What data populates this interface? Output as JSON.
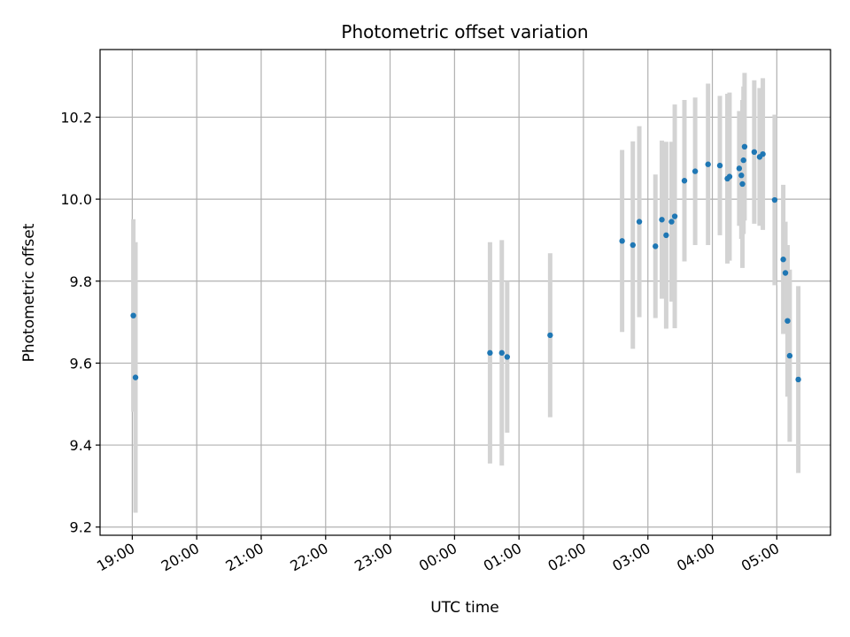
{
  "chart_data": {
    "type": "scatter",
    "title": "Photometric offset variation",
    "xlabel": "UTC time",
    "ylabel": "Photometric offset",
    "x_axis_type": "time",
    "xlim": [
      "18:30",
      "05:50"
    ],
    "ylim": [
      9.18,
      10.365
    ],
    "grid": true,
    "x_ticks": [
      "19:00",
      "20:00",
      "21:00",
      "22:00",
      "23:00",
      "00:00",
      "01:00",
      "02:00",
      "03:00",
      "04:00",
      "05:00"
    ],
    "y_ticks": [
      9.2,
      9.4,
      9.6,
      9.8,
      10.0,
      10.2
    ],
    "y_tick_labels": [
      "9.2",
      "9.4",
      "9.6",
      "9.8",
      "10.0",
      "10.2"
    ],
    "colors": {
      "point": "#1f77b4",
      "error_bar": "#d3d3d3",
      "grid": "#b0b0b0"
    },
    "series": [
      {
        "points": [
          {
            "x": "19:01",
            "y": 9.716,
            "err": 0.235
          },
          {
            "x": "19:03",
            "y": 9.565,
            "err": 0.33
          },
          {
            "x": "00:33",
            "y": 9.625,
            "err": 0.27
          },
          {
            "x": "00:44",
            "y": 9.625,
            "err": 0.275
          },
          {
            "x": "00:49",
            "y": 9.615,
            "err": 0.185
          },
          {
            "x": "01:29",
            "y": 9.668,
            "err": 0.2
          },
          {
            "x": "02:36",
            "y": 9.898,
            "err": 0.222
          },
          {
            "x": "02:46",
            "y": 9.888,
            "err": 0.253
          },
          {
            "x": "02:52",
            "y": 9.945,
            "err": 0.233
          },
          {
            "x": "03:07",
            "y": 9.885,
            "err": 0.175
          },
          {
            "x": "03:13",
            "y": 9.95,
            "err": 0.193
          },
          {
            "x": "03:17",
            "y": 9.912,
            "err": 0.228
          },
          {
            "x": "03:22",
            "y": 9.945,
            "err": 0.195
          },
          {
            "x": "03:25",
            "y": 9.958,
            "err": 0.273
          },
          {
            "x": "03:34",
            "y": 10.045,
            "err": 0.197
          },
          {
            "x": "03:44",
            "y": 10.068,
            "err": 0.18
          },
          {
            "x": "03:56",
            "y": 10.085,
            "err": 0.197
          },
          {
            "x": "04:07",
            "y": 10.082,
            "err": 0.17
          },
          {
            "x": "04:14",
            "y": 10.05,
            "err": 0.207
          },
          {
            "x": "04:16",
            "y": 10.055,
            "err": 0.205
          },
          {
            "x": "04:25",
            "y": 10.075,
            "err": 0.14
          },
          {
            "x": "04:27",
            "y": 10.058,
            "err": 0.155
          },
          {
            "x": "04:28",
            "y": 10.037,
            "err": 0.205
          },
          {
            "x": "04:29",
            "y": 10.095,
            "err": 0.18
          },
          {
            "x": "04:30",
            "y": 10.128,
            "err": 0.18
          },
          {
            "x": "04:39",
            "y": 10.115,
            "err": 0.175
          },
          {
            "x": "04:44",
            "y": 10.103,
            "err": 0.168
          },
          {
            "x": "04:47",
            "y": 10.11,
            "err": 0.185
          },
          {
            "x": "04:58",
            "y": 9.998,
            "err": 0.208
          },
          {
            "x": "05:06",
            "y": 9.853,
            "err": 0.182
          },
          {
            "x": "05:08",
            "y": 9.82,
            "err": 0.125
          },
          {
            "x": "05:10",
            "y": 9.703,
            "err": 0.185
          },
          {
            "x": "05:12",
            "y": 9.618,
            "err": 0.21
          },
          {
            "x": "05:20",
            "y": 9.56,
            "err": 0.228
          }
        ]
      }
    ]
  }
}
